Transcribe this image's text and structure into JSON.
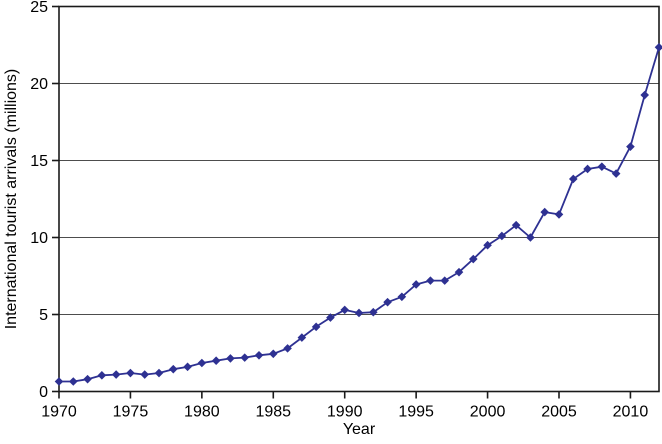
{
  "figure": {
    "background": "#ffffff"
  },
  "chart_data": {
    "type": "line",
    "title": "",
    "xlabel": "Year",
    "ylabel": "International tourist arrivals (millions)",
    "x": [
      1970,
      1971,
      1972,
      1973,
      1974,
      1975,
      1976,
      1977,
      1978,
      1979,
      1980,
      1981,
      1982,
      1983,
      1984,
      1985,
      1986,
      1987,
      1988,
      1989,
      1990,
      1991,
      1992,
      1993,
      1994,
      1995,
      1996,
      1997,
      1998,
      1999,
      2000,
      2001,
      2002,
      2003,
      2004,
      2005,
      2006,
      2007,
      2008,
      2009,
      2010,
      2011,
      2012
    ],
    "series": [
      {
        "name": "International tourist arrivals",
        "values": [
          0.65,
          0.65,
          0.8,
          1.05,
          1.1,
          1.2,
          1.1,
          1.2,
          1.45,
          1.6,
          1.85,
          2.0,
          2.15,
          2.2,
          2.35,
          2.45,
          2.8,
          3.5,
          4.2,
          4.8,
          5.3,
          5.1,
          5.15,
          5.8,
          6.15,
          6.95,
          7.2,
          7.2,
          7.75,
          8.6,
          9.5,
          10.1,
          10.8,
          10.0,
          11.65,
          11.5,
          13.8,
          14.45,
          14.6,
          14.15,
          15.9,
          19.25,
          22.35
        ],
        "color": "#2e3192",
        "marker": "diamond"
      }
    ],
    "xlim": [
      1970,
      2012
    ],
    "ylim": [
      0,
      25
    ],
    "xticks": [
      1970,
      1975,
      1980,
      1985,
      1990,
      1995,
      2000,
      2005,
      2010
    ],
    "yticks": [
      0,
      5,
      10,
      15,
      20,
      25
    ],
    "grid": "horizontal",
    "gridline_color": "#4d4d4d",
    "axis_color": "#1a1a1a",
    "legend": "none"
  }
}
